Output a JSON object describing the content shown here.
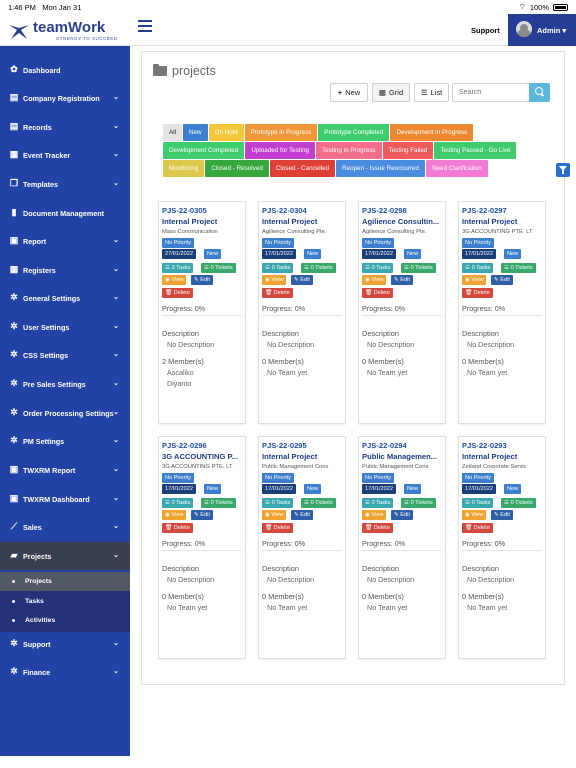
{
  "status_bar": {
    "time": "1:46 PM",
    "date": "Mon Jan 31",
    "battery": "100%"
  },
  "header": {
    "logo_text": "teamWork",
    "logo_tagline": "SYNERGY TO SUCCEED",
    "support_label": "Support",
    "user_label": "Admin ▾"
  },
  "sidebar": {
    "items": [
      {
        "label": "Dashboard",
        "icon": "palette-icon",
        "glyph": "✿",
        "chevron": false
      },
      {
        "label": "Company Registration",
        "icon": "building-icon",
        "glyph": "▤",
        "chevron": true
      },
      {
        "label": "Records",
        "icon": "list-icon",
        "glyph": "▤",
        "chevron": true
      },
      {
        "label": "Event Tracker",
        "icon": "calendar-icon",
        "glyph": "▦",
        "chevron": true
      },
      {
        "label": "Templates",
        "icon": "copy-icon",
        "glyph": "❐",
        "chevron": true
      },
      {
        "label": "Document Management",
        "icon": "file-icon",
        "glyph": "▮",
        "chevron": false
      },
      {
        "label": "Report",
        "icon": "report-icon",
        "glyph": "▣",
        "chevron": true
      },
      {
        "label": "Registers",
        "icon": "grid-icon",
        "glyph": "▦",
        "chevron": true
      },
      {
        "label": "General Settings",
        "icon": "gear-icon",
        "glyph": "✲",
        "chevron": true
      },
      {
        "label": "User Settings",
        "icon": "gear-icon",
        "glyph": "✲",
        "chevron": true
      },
      {
        "label": "CSS Settings",
        "icon": "gear-icon",
        "glyph": "✲",
        "chevron": true
      },
      {
        "label": "Pre Sales Settings",
        "icon": "gear-icon",
        "glyph": "✲",
        "chevron": true
      },
      {
        "label": "Order Processing Settings",
        "icon": "gear-icon",
        "glyph": "✲",
        "chevron": true
      },
      {
        "label": "PM Settings",
        "icon": "gear-icon",
        "glyph": "✲",
        "chevron": true
      },
      {
        "label": "TWXRM Report",
        "icon": "report-icon",
        "glyph": "▣",
        "chevron": true
      },
      {
        "label": "TWXRM Dashboard",
        "icon": "report-icon",
        "glyph": "▣",
        "chevron": true
      },
      {
        "label": "Sales",
        "icon": "chart-line-icon",
        "glyph": "⟋",
        "chevron": true
      },
      {
        "label": "Projects",
        "icon": "folder-icon",
        "glyph": "▰",
        "chevron": true
      },
      {
        "label": "Support",
        "icon": "gear-icon",
        "glyph": "✲",
        "chevron": true
      },
      {
        "label": "Finance",
        "icon": "gear-icon",
        "glyph": "✲",
        "chevron": true
      }
    ],
    "sub_items": [
      {
        "label": "Projects",
        "active": true
      },
      {
        "label": "Tasks",
        "active": false
      },
      {
        "label": "Activities",
        "active": false
      }
    ]
  },
  "main": {
    "title": "projects",
    "buttons": {
      "new": "New",
      "grid": "Grid",
      "list": "List"
    },
    "search_placeholder": "Search",
    "filters": [
      {
        "label": "All",
        "color": "#e3e3e3",
        "text": "#222"
      },
      {
        "label": "New",
        "color": "#3c7fcf",
        "text": "#fff"
      },
      {
        "label": "On Hold",
        "color": "#f2c73a",
        "text": "#fff"
      },
      {
        "label": "Prototype in Progress",
        "color": "#f0973a",
        "text": "#fff"
      },
      {
        "label": "Prototype Completed",
        "color": "#3fcc6d",
        "text": "#fff"
      },
      {
        "label": "Development in Progress",
        "color": "#ee8830",
        "text": "#fff"
      },
      {
        "label": "Development Completed",
        "color": "#3fcc6d",
        "text": "#fff"
      },
      {
        "label": "Uploaded for Testing",
        "color": "#c23ed0",
        "text": "#fff"
      },
      {
        "label": "Testing in Progress",
        "color": "#f46d8a",
        "text": "#fff"
      },
      {
        "label": "Testing Failed",
        "color": "#ee5b5b",
        "text": "#fff"
      },
      {
        "label": "Testing Passed - Go Live",
        "color": "#3fcc6d",
        "text": "#fff"
      },
      {
        "label": "Monitoring",
        "color": "#dcc84a",
        "text": "#fff"
      },
      {
        "label": "Closed - Resolved",
        "color": "#38a83e",
        "text": "#fff"
      },
      {
        "label": "Closed - Cancelled",
        "color": "#dc3f36",
        "text": "#fff"
      },
      {
        "label": "Reopen - Issue Reoccurred",
        "color": "#4a8ce0",
        "text": "#fff"
      },
      {
        "label": "Need Clarification",
        "color": "#f27bd3",
        "text": "#fff"
      }
    ],
    "card_labels": {
      "priority": "No Priority",
      "view": "◉ View",
      "edit": "✎ Edit",
      "delete": "🗑 Delete",
      "description_heading": "Description",
      "no_description": "No Description"
    },
    "cards": [
      {
        "code": "PJS-22-0305",
        "name": "Internal Project",
        "client": "Mass Communication",
        "date": "27/01/2022",
        "status": "New",
        "tasks": "☰ 3 Tasks",
        "tickets": "☰ 0 Tickets",
        "progress": "Progress: 0%",
        "members_count": "2 Member(s)",
        "members": [
          "Ascaliko",
          "Diyanto"
        ]
      },
      {
        "code": "PJS-22-0304",
        "name": "Internal Project",
        "client": "Agilience Consulting Pte.",
        "date": "17/01/2022",
        "status": "New",
        "tasks": "☰ 0 Tasks",
        "tickets": "☰ 0 Tickets",
        "progress": "Progress: 0%",
        "members_count": "0 Member(s)",
        "members": [
          "No Team yet"
        ]
      },
      {
        "code": "PJS-22-0298",
        "name": "Agilience Consultin...",
        "client": "Agilience Consulting Pte.",
        "date": "17/01/2022",
        "status": "New",
        "tasks": "☰ 0 Tasks",
        "tickets": "☰ 0 Tickets",
        "progress": "Progress: 0%",
        "members_count": "0 Member(s)",
        "members": [
          "No Team yet"
        ]
      },
      {
        "code": "PJS-22-0297",
        "name": "Internal Project",
        "client": "3G ACCOUNTING PTE. LT",
        "date": "17/01/2022",
        "status": "New",
        "tasks": "☰ 0 Tasks",
        "tickets": "☰ 0 Tickets",
        "progress": "Progress: 0%",
        "members_count": "0 Member(s)",
        "members": [
          "No Team yet"
        ]
      },
      {
        "code": "PJS-22-0296",
        "name": "3G ACCOUNTING P...",
        "client": "3G ACCOUNTING PTE. LT",
        "date": "17/01/2022",
        "status": "New",
        "tasks": "☰ 0 Tasks",
        "tickets": "☰ 0 Tickets",
        "progress": "Progress: 0%",
        "members_count": "0 Member(s)",
        "members": [
          "No Team yet"
        ]
      },
      {
        "code": "PJS-22-0295",
        "name": "Internal Project",
        "client": "Public Management Cons",
        "date": "17/01/2022",
        "status": "New",
        "tasks": "☰ 0 Tasks",
        "tickets": "☰ 0 Tickets",
        "progress": "Progress: 0%",
        "members_count": "0 Member(s)",
        "members": [
          "No Team yet"
        ]
      },
      {
        "code": "PJS-22-0294",
        "name": "Public Managemen...",
        "client": "Public Management Cons",
        "date": "17/01/2022",
        "status": "New",
        "tasks": "☰ 0 Tasks",
        "tickets": "☰ 0 Tickets",
        "progress": "Progress: 0%",
        "members_count": "0 Member(s)",
        "members": [
          "No Team yet"
        ]
      },
      {
        "code": "PJS-22-0293",
        "name": "Internal Project",
        "client": "Zetland Corporate Servic",
        "date": "17/01/2022",
        "status": "New",
        "tasks": "☰ 0 Tasks",
        "tickets": "☰ 0 Tickets",
        "progress": "Progress: 0%",
        "members_count": "0 Member(s)",
        "members": [
          "No Team yet"
        ]
      }
    ]
  }
}
